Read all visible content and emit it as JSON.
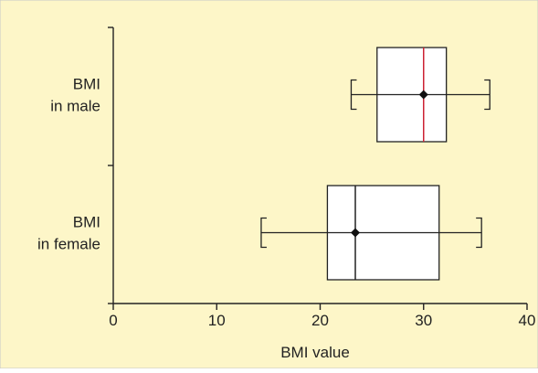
{
  "chart_data": {
    "type": "box",
    "title": "",
    "xlabel": "BMI value",
    "ylabel": "",
    "xlim": [
      0,
      40
    ],
    "x_ticks": [
      0,
      10,
      20,
      30,
      40
    ],
    "grid": false,
    "background_color": "#fdf6c8",
    "series": [
      {
        "category_lines": [
          "BMI",
          "in male"
        ],
        "whisker_low": 23,
        "q1": 25.5,
        "median": 30,
        "q3": 32.2,
        "whisker_high": 36.4,
        "mean": 30,
        "median_color": "#cc2233"
      },
      {
        "category_lines": [
          "BMI",
          "in female"
        ],
        "whisker_low": 14.3,
        "q1": 20.7,
        "median": 23.4,
        "q3": 31.5,
        "whisker_high": 35.6,
        "mean": 23.4,
        "median_color": "#222222"
      }
    ]
  }
}
